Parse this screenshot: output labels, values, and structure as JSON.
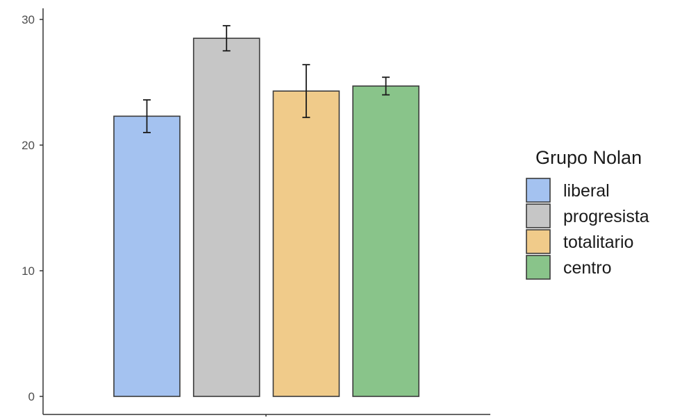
{
  "chart_data": {
    "type": "bar",
    "title": "",
    "xlabel": "",
    "ylabel": "",
    "ylim": [
      0,
      30.5
    ],
    "y_ticks": [
      0,
      10,
      20,
      30
    ],
    "grid": false,
    "legend": {
      "title": "Grupo Nolan",
      "position": "right"
    },
    "categories": [
      "liberal",
      "progresista",
      "totalitario",
      "centro"
    ],
    "values": [
      22.3,
      28.5,
      24.3,
      24.7
    ],
    "errors": [
      {
        "low": 21.0,
        "high": 23.6
      },
      {
        "low": 27.5,
        "high": 29.5
      },
      {
        "low": 22.2,
        "high": 26.4
      },
      {
        "low": 24.0,
        "high": 25.4
      }
    ],
    "colors": [
      "#a4c2f0",
      "#c6c6c6",
      "#f0cb8a",
      "#89c48a"
    ],
    "bar_edge_color": "#3a3a3a"
  }
}
